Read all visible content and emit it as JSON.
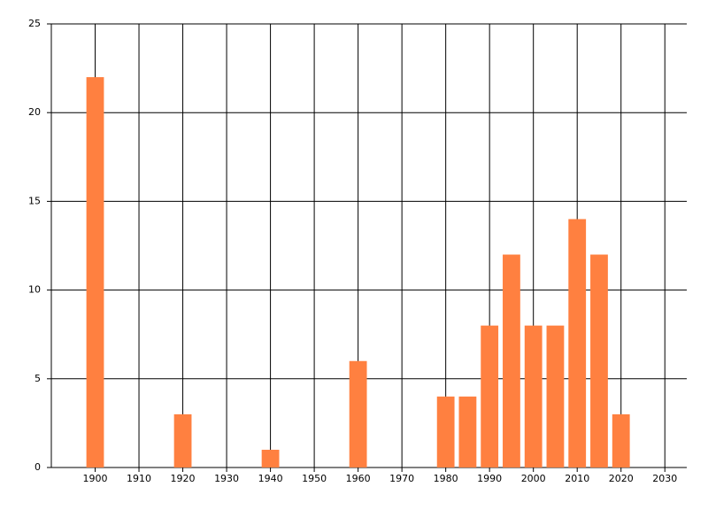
{
  "chart_data": {
    "type": "bar",
    "x": [
      1900,
      1920,
      1940,
      1960,
      1980,
      1985,
      1990,
      1995,
      2000,
      2005,
      2010,
      2015,
      2020
    ],
    "values": [
      22,
      3,
      1,
      6,
      4,
      4,
      8,
      12,
      8,
      8,
      14,
      12,
      3
    ],
    "color": "#ff8040",
    "xlim": [
      1890,
      2035
    ],
    "xticks": [
      1900,
      1910,
      1920,
      1930,
      1940,
      1950,
      1960,
      1970,
      1980,
      1990,
      2000,
      2010,
      2020,
      2030
    ],
    "ylim": [
      0,
      25
    ],
    "yticks": [
      0,
      5,
      10,
      15,
      20,
      25
    ],
    "grid": true
  }
}
